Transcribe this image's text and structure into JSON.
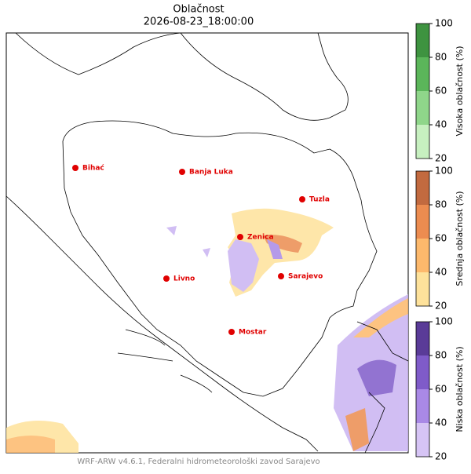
{
  "title": "Oblačnost",
  "subtitle": "2026-08-23_18:00:00",
  "cities": [
    "Bihać",
    "Banja Luka",
    "Tuzla",
    "Zenica",
    "Livno",
    "Sarajevo",
    "Mostar"
  ],
  "colorbars": [
    {
      "label": "Visoka oblačnost (%)",
      "ticks": [
        20,
        40,
        60,
        80,
        100
      ],
      "colors": [
        "#c7f0c0",
        "#8fd68a",
        "#5bb65a",
        "#3e9340"
      ]
    },
    {
      "label": "Srednja oblačnost (%)",
      "ticks": [
        20,
        40,
        60,
        80,
        100
      ],
      "colors": [
        "#fee29b",
        "#fdb96c",
        "#ec8c50",
        "#c26a3f"
      ]
    },
    {
      "label": "Niska oblačnost (%)",
      "ticks": [
        20,
        40,
        60,
        80,
        100
      ],
      "colors": [
        "#d6c4f5",
        "#a989e6",
        "#7f5bc9",
        "#5a3b98"
      ]
    }
  ],
  "footer": "WRF-ARW v4.6.1, Federalni hidrometeorološki zavod Sarajevo"
}
